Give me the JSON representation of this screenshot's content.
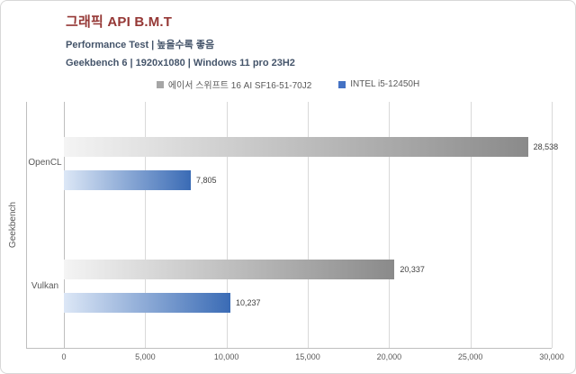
{
  "header": {
    "title": "그래픽 API B.M.T",
    "subtitle1": "Performance Test | 높을수록 좋음",
    "subtitle2": "Geekbench 6 | 1920x1080 | Windows 11 pro 23H2"
  },
  "colors": {
    "title": "#953735",
    "subtitle": "#44546A",
    "axis_text": "#595959",
    "value_label": "#404040",
    "gridline": "#D9D9D9",
    "axis_line": "#BFBFBF",
    "series": [
      {
        "from": "#F4F4F4",
        "to": "#8A8A8A",
        "legend": "#A6A6A6"
      },
      {
        "from": "#DCE7F6",
        "to": "#3A6BB5",
        "legend": "#4472C4"
      }
    ]
  },
  "chart_data": {
    "type": "bar",
    "orientation": "horizontal",
    "title": "그래픽 API B.M.T",
    "group_label": "Geekbench",
    "categories": [
      "OpenCL",
      "Vulkan"
    ],
    "series": [
      {
        "name": "에이서 스위프트 16 AI SF16-51-70J2",
        "values": [
          28538,
          20337
        ],
        "labels": [
          "28,538",
          "20,337"
        ]
      },
      {
        "name": "INTEL i5-12450H",
        "values": [
          7805,
          10237
        ],
        "labels": [
          "7,805",
          "10,237"
        ]
      }
    ],
    "xlim": [
      0,
      30000
    ],
    "xticks": [
      0,
      5000,
      10000,
      15000,
      20000,
      25000,
      30000
    ],
    "xtick_labels": [
      "0",
      "5,000",
      "10,000",
      "15,000",
      "20,000",
      "25,000",
      "30,000"
    ],
    "grid": true,
    "legend_position": "top-center",
    "higher_is_better": true
  }
}
